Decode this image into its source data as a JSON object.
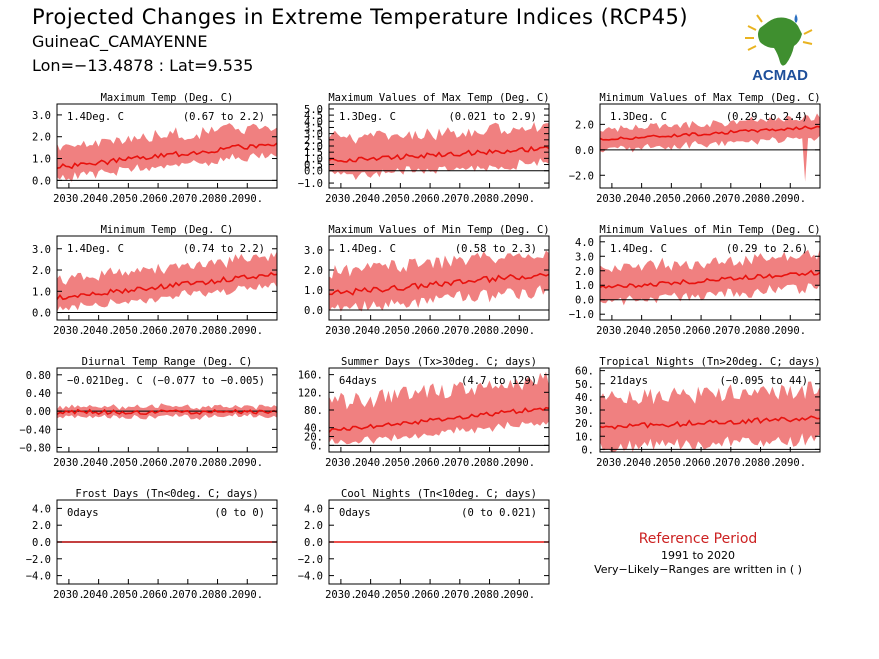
{
  "header": {
    "title": "Projected Changes in Extreme Temperature Indices (RCP45)",
    "station": "GuineaC_CAMAYENNE",
    "coords": "Lon=−13.4878 : Lat=9.535"
  },
  "logo": {
    "text": "ACMAD",
    "icon": "acmad-africa-logo"
  },
  "colors": {
    "band": "#f08080",
    "line": "#e8120e",
    "zero": "#000000"
  },
  "reference": {
    "title": "Reference Period",
    "years": "1991 to 2020",
    "note": "Very−Likely−Ranges are written in ( )"
  },
  "chart_data": [
    {
      "type": "area",
      "title": "Maximum Temp (Deg. C)",
      "mean_label": "1.4Deg. C",
      "range_label": "(0.67 to 2.2)",
      "x": [
        2026,
        2100
      ],
      "ylim": [
        -0.35,
        3.5
      ],
      "yticks": [
        {
          "v": 0,
          "t": "0.0"
        },
        {
          "v": 1,
          "t": "1.0"
        },
        {
          "v": 2,
          "t": "2.0"
        },
        {
          "v": 3,
          "t": "3.0"
        }
      ],
      "xticks": [
        "2030.",
        "2040.",
        "2050.",
        "2060.",
        "2070.",
        "2080.",
        "2090."
      ],
      "trend": {
        "start": 0.6,
        "end": 1.7
      },
      "spread": {
        "lo": 0.5,
        "hi": 0.9
      },
      "noise": 0.12,
      "spike": null
    },
    {
      "type": "area",
      "title": "Maximum Values of Max Temp (Deg. C)",
      "mean_label": "1.3Deg. C",
      "range_label": "(0.021 to 2.9)",
      "x": [
        2026,
        2100
      ],
      "ylim": [
        -1.4,
        5.4
      ],
      "yticks": [
        {
          "v": -1,
          "t": "−1.0"
        },
        {
          "v": 0,
          "t": "0.0"
        },
        {
          "v": 0.5,
          "t": "0.5"
        },
        {
          "v": 1,
          "t": "1.0"
        },
        {
          "v": 1.5,
          "t": "1.5"
        },
        {
          "v": 2,
          "t": "2.0"
        },
        {
          "v": 2.5,
          "t": "2.5"
        },
        {
          "v": 3,
          "t": "3.0"
        },
        {
          "v": 3.5,
          "t": "3.5"
        },
        {
          "v": 4,
          "t": "4.0"
        },
        {
          "v": 4.5,
          "t": "4.5"
        },
        {
          "v": 5,
          "t": "5.0"
        }
      ],
      "xticks": [
        "2030.",
        "2040.",
        "2050.",
        "2060.",
        "2070.",
        "2080.",
        "2090."
      ],
      "trend": {
        "start": 0.8,
        "end": 1.8
      },
      "spread": {
        "lo": 1.2,
        "hi": 1.8
      },
      "noise": 0.2,
      "spike": null
    },
    {
      "type": "area",
      "title": "Minimum Values of Max Temp (Deg. C)",
      "mean_label": "1.3Deg. C",
      "range_label": "(0.29 to 2.4)",
      "x": [
        2026,
        2100
      ],
      "ylim": [
        -3.0,
        3.6
      ],
      "yticks": [
        {
          "v": -2,
          "t": "−2.0"
        },
        {
          "v": 0,
          "t": "0.0"
        },
        {
          "v": 2,
          "t": "2.0"
        }
      ],
      "xticks": [
        "2030.",
        "2040.",
        "2050.",
        "2060.",
        "2070.",
        "2080.",
        "2090."
      ],
      "trend": {
        "start": 0.8,
        "end": 1.8
      },
      "spread": {
        "lo": 0.8,
        "hi": 0.8
      },
      "noise": 0.12,
      "spike": {
        "x": 2095,
        "lo": -2.5
      }
    },
    {
      "type": "area",
      "title": "Minimum Temp (Deg. C)",
      "mean_label": "1.4Deg. C",
      "range_label": "(0.74 to 2.2)",
      "x": [
        2026,
        2100
      ],
      "ylim": [
        -0.35,
        3.6
      ],
      "yticks": [
        {
          "v": 0,
          "t": "0.0"
        },
        {
          "v": 1,
          "t": "1.0"
        },
        {
          "v": 2,
          "t": "2.0"
        },
        {
          "v": 3,
          "t": "3.0"
        }
      ],
      "xticks": [
        "2030.",
        "2040.",
        "2050.",
        "2060.",
        "2070.",
        "2080.",
        "2090."
      ],
      "trend": {
        "start": 0.7,
        "end": 1.8
      },
      "spread": {
        "lo": 0.5,
        "hi": 0.9
      },
      "noise": 0.12,
      "spike": null
    },
    {
      "type": "area",
      "title": "Maximum Values of Min Temp (Deg. C)",
      "mean_label": "1.4Deg. C",
      "range_label": "(0.58 to 2.3)",
      "x": [
        2026,
        2100
      ],
      "ylim": [
        -0.5,
        3.7
      ],
      "yticks": [
        {
          "v": 0,
          "t": "0.0"
        },
        {
          "v": 1,
          "t": "1.0"
        },
        {
          "v": 2,
          "t": "2.0"
        },
        {
          "v": 3,
          "t": "3.0"
        }
      ],
      "xticks": [
        "2030.",
        "2040.",
        "2050.",
        "2060.",
        "2070.",
        "2080.",
        "2090."
      ],
      "trend": {
        "start": 0.8,
        "end": 1.8
      },
      "spread": {
        "lo": 0.8,
        "hi": 1.1
      },
      "noise": 0.15,
      "spike": null
    },
    {
      "type": "area",
      "title": "Minimum Values of Min Temp (Deg. C)",
      "mean_label": "1.4Deg. C",
      "range_label": "(0.29 to 2.6)",
      "x": [
        2026,
        2100
      ],
      "ylim": [
        -1.4,
        4.4
      ],
      "yticks": [
        {
          "v": -1,
          "t": "−1.0"
        },
        {
          "v": 0,
          "t": "0.0"
        },
        {
          "v": 1,
          "t": "1.0"
        },
        {
          "v": 2,
          "t": "2.0"
        },
        {
          "v": 3,
          "t": "3.0"
        },
        {
          "v": 4,
          "t": "4.0"
        }
      ],
      "xticks": [
        "2030.",
        "2040.",
        "2050.",
        "2060.",
        "2070.",
        "2080.",
        "2090."
      ],
      "trend": {
        "start": 0.8,
        "end": 1.9
      },
      "spread": {
        "lo": 1.0,
        "hi": 1.3
      },
      "noise": 0.15,
      "spike": null
    },
    {
      "type": "area",
      "title": "Diurnal Temp Range (Deg. C)",
      "mean_label": "−0.021Deg. C",
      "range_label": "(−0.077 to −0.005)",
      "x": [
        2026,
        2100
      ],
      "ylim": [
        -0.9,
        0.95
      ],
      "yticks": [
        {
          "v": -0.8,
          "t": "−0.80"
        },
        {
          "v": -0.4,
          "t": "−0.40"
        },
        {
          "v": 0,
          "t": "0.00"
        },
        {
          "v": 0.4,
          "t": "0.40"
        },
        {
          "v": 0.8,
          "t": "0.80"
        }
      ],
      "xticks": [
        "2030.",
        "2040.",
        "2050.",
        "2060.",
        "2070.",
        "2080.",
        "2090."
      ],
      "trend": {
        "start": -0.02,
        "end": -0.02
      },
      "spread": {
        "lo": 0.1,
        "hi": 0.12
      },
      "noise": 0.05,
      "spike": null
    },
    {
      "type": "area",
      "title": "Summer Days (Tx>30deg. C; days)",
      "mean_label": "64days",
      "range_label": "(4.7 to 129)",
      "x": [
        2026,
        2100
      ],
      "ylim": [
        -15,
        175
      ],
      "yticks": [
        {
          "v": 0,
          "t": "0."
        },
        {
          "v": 20,
          "t": "20."
        },
        {
          "v": 40,
          "t": "40."
        },
        {
          "v": 80,
          "t": "80."
        },
        {
          "v": 120,
          "t": "120."
        },
        {
          "v": 160,
          "t": "160."
        }
      ],
      "xticks": [
        "2030.",
        "2040.",
        "2050.",
        "2060.",
        "2070.",
        "2080.",
        "2090."
      ],
      "trend": {
        "start": 32,
        "end": 85
      },
      "spread": {
        "lo": 30,
        "hi": 65
      },
      "noise": 5,
      "spike": null
    },
    {
      "type": "area",
      "title": "Tropical Nights (Tn>20deg. C; days)",
      "mean_label": "21days",
      "range_label": "(−0.095 to 44)",
      "x": [
        2026,
        2100
      ],
      "ylim": [
        -2,
        62
      ],
      "yticks": [
        {
          "v": 0,
          "t": "0."
        },
        {
          "v": 10,
          "t": "10."
        },
        {
          "v": 20,
          "t": "20."
        },
        {
          "v": 30,
          "t": "30."
        },
        {
          "v": 40,
          "t": "40."
        },
        {
          "v": 50,
          "t": "50."
        },
        {
          "v": 60,
          "t": "60."
        }
      ],
      "xticks": [
        "2030.",
        "2040.",
        "2050.",
        "2060.",
        "2070.",
        "2080.",
        "2090."
      ],
      "trend": {
        "start": 17,
        "end": 24
      },
      "spread": {
        "lo": 16,
        "hi": 22
      },
      "noise": 2,
      "spike": null
    },
    {
      "type": "area",
      "title": "Frost Days (Tn<0deg. C; days)",
      "mean_label": "0days",
      "range_label": "(0 to 0)",
      "x": [
        2026,
        2100
      ],
      "ylim": [
        -5,
        5
      ],
      "yticks": [
        {
          "v": -4,
          "t": "−4.0"
        },
        {
          "v": -2,
          "t": "−2.0"
        },
        {
          "v": 0,
          "t": "0.0"
        },
        {
          "v": 2,
          "t": "2.0"
        },
        {
          "v": 4,
          "t": "4.0"
        }
      ],
      "xticks": [
        "2030.",
        "2040.",
        "2050.",
        "2060.",
        "2070.",
        "2080.",
        "2090."
      ],
      "trend": {
        "start": 0,
        "end": 0
      },
      "spread": {
        "lo": 0,
        "hi": 0
      },
      "noise": 0,
      "spike": null
    },
    {
      "type": "area",
      "title": "Cool Nights (Tn<10deg. C; days)",
      "mean_label": "0days",
      "range_label": "(0 to 0.021)",
      "x": [
        2026,
        2100
      ],
      "ylim": [
        -5,
        5
      ],
      "yticks": [
        {
          "v": -4,
          "t": "−4.0"
        },
        {
          "v": -2,
          "t": "−2.0"
        },
        {
          "v": 0,
          "t": "0.0"
        },
        {
          "v": 2,
          "t": "2.0"
        },
        {
          "v": 4,
          "t": "4.0"
        }
      ],
      "xticks": [
        "2030.",
        "2040.",
        "2050.",
        "2060.",
        "2070.",
        "2080.",
        "2090."
      ],
      "trend": {
        "start": 0,
        "end": 0
      },
      "spread": {
        "lo": 0,
        "hi": 0.01
      },
      "noise": 0,
      "spike": null
    }
  ]
}
